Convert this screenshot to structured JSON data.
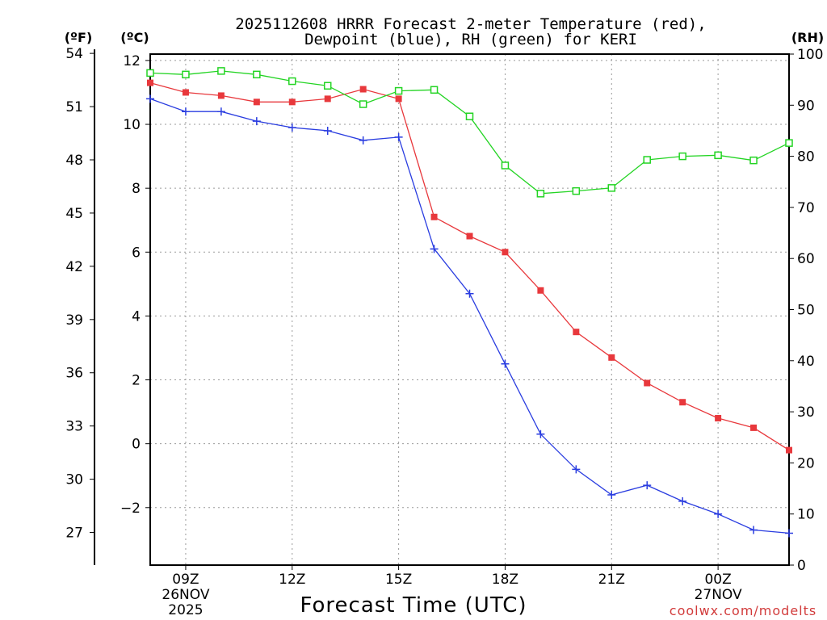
{
  "chart_data": {
    "type": "line",
    "title_line1": "2025112608 HRRR Forecast 2-meter Temperature (red),",
    "title_line2": "Dewpoint (blue), RH (green) for KERI",
    "xlabel": "Forecast Time (UTC)",
    "credit": "coolwx.com/modelts",
    "unit_f": "(ºF)",
    "unit_c": "(ºC)",
    "unit_rh": "(RH)",
    "x_hours": [
      8,
      9,
      10,
      11,
      12,
      13,
      14,
      15,
      16,
      17,
      18,
      19,
      20,
      21,
      22,
      23,
      24,
      25,
      26
    ],
    "xlim": [
      8,
      26
    ],
    "x_ticks": [
      {
        "hour": 9,
        "line1": "09Z",
        "line2": "26NOV",
        "line3": "2025"
      },
      {
        "hour": 12,
        "line1": "12Z",
        "line2": "",
        "line3": ""
      },
      {
        "hour": 15,
        "line1": "15Z",
        "line2": "",
        "line3": ""
      },
      {
        "hour": 18,
        "line1": "18Z",
        "line2": "",
        "line3": ""
      },
      {
        "hour": 21,
        "line1": "21Z",
        "line2": "",
        "line3": ""
      },
      {
        "hour": 24,
        "line1": "00Z",
        "line2": "27NOV",
        "line3": ""
      }
    ],
    "ylim_c": [
      -3.8,
      12.2
    ],
    "c_ticks": [
      "12",
      "10",
      "8",
      "6",
      "4",
      "2",
      "0",
      "−2"
    ],
    "c_tick_values": [
      12,
      10,
      8,
      6,
      4,
      2,
      0,
      -2
    ],
    "f_ticks": [
      "54",
      "51",
      "48",
      "45",
      "42",
      "39",
      "36",
      "33",
      "30",
      "27"
    ],
    "f_tick_values": [
      54,
      51,
      48,
      45,
      42,
      39,
      36,
      33,
      30,
      27
    ],
    "ylim_rh": [
      0,
      100
    ],
    "rh_ticks": [
      "100",
      "90",
      "80",
      "70",
      "60",
      "50",
      "40",
      "30",
      "20",
      "10",
      "0"
    ],
    "rh_tick_values": [
      100,
      90,
      80,
      70,
      60,
      50,
      40,
      30,
      20,
      10,
      0
    ],
    "series": [
      {
        "name": "Temperature",
        "unit": "C",
        "color": "#e8383c",
        "marker": "filled-square",
        "values": [
          11.3,
          11.0,
          10.9,
          10.7,
          10.7,
          10.8,
          11.1,
          10.8,
          7.1,
          6.5,
          6.0,
          4.8,
          3.5,
          2.7,
          1.9,
          1.3,
          0.8,
          0.5,
          -0.2
        ]
      },
      {
        "name": "Dewpoint",
        "unit": "C",
        "color": "#2a3de0",
        "marker": "plus",
        "values": [
          10.8,
          10.4,
          10.4,
          10.1,
          9.9,
          9.8,
          9.5,
          9.6,
          6.1,
          4.7,
          2.5,
          0.3,
          -0.8,
          -1.6,
          -1.3,
          -1.8,
          -2.2,
          -2.7,
          -2.8
        ]
      },
      {
        "name": "RH",
        "unit": "%",
        "color": "#23d423",
        "marker": "open-square",
        "values": [
          96.3,
          96.0,
          96.7,
          96.0,
          94.7,
          93.8,
          90.2,
          92.8,
          93.0,
          87.8,
          78.2,
          72.7,
          73.2,
          73.8,
          79.3,
          80.0,
          80.2,
          79.2,
          82.6
        ]
      }
    ]
  }
}
